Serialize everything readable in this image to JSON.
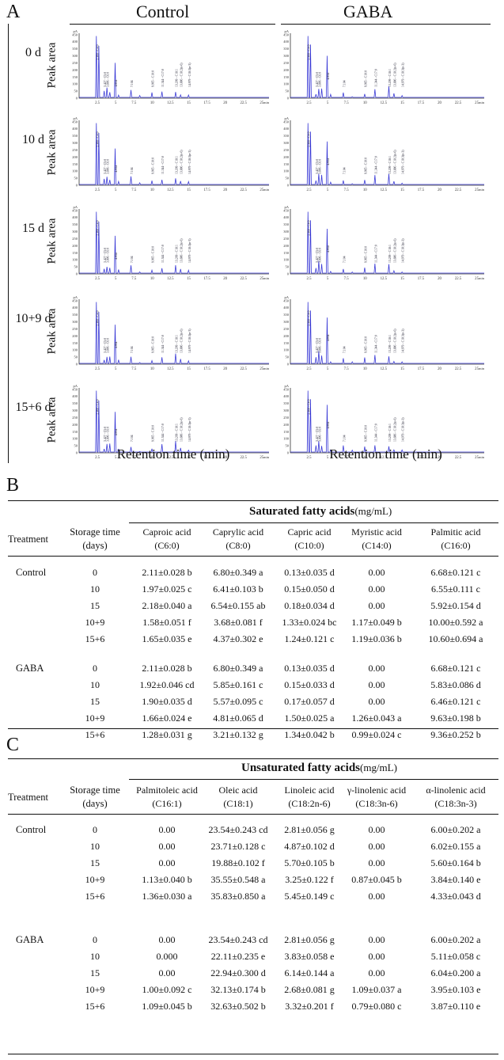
{
  "panelA": {
    "letter": "A",
    "col_headers": [
      "Control",
      "GABA"
    ],
    "row_labels": [
      "0 d",
      "10 d",
      "15 d",
      "10+9 d",
      "15+6 d"
    ],
    "y_axis_label": "Peak area",
    "x_axis_label": "Retention time (min)",
    "y_ticks": [
      "450",
      "400",
      "350",
      "300",
      "250",
      "200",
      "150",
      "100",
      "50",
      "0"
    ],
    "y_unit": "pA",
    "x_ticks": [
      "2.5",
      "5",
      "7.5",
      "10",
      "12.5",
      "15",
      "17.5",
      "20",
      "22.5",
      "25"
    ],
    "x_unit": "min",
    "peak_labels": [
      "2.360 - C4:0",
      "3.427 - C5:0",
      "3.806 - C6:0",
      "4.934",
      "7.104",
      "9.965 - C10:0",
      "11.344 - C17:0",
      "13.209 - C18:1",
      "13.886 - C18:2(n-6)",
      "14.979 - C18:3(n-3)"
    ]
  },
  "panelB": {
    "letter": "B",
    "treatment_label": "Treatment",
    "storage_label": "Storage time",
    "storage_unit": "(days)",
    "group_title": "Saturated fatty acids",
    "group_unit": "(mg/mL)",
    "cols": [
      {
        "name": "Caproic acid",
        "code": "(C6:0)"
      },
      {
        "name": "Caprylic acid",
        "code": "(C8:0)"
      },
      {
        "name": "Capric acid",
        "code": "(C10:0)"
      },
      {
        "name": "Myristic acid",
        "code": "(C14:0)"
      },
      {
        "name": "Palmitic acid",
        "code": "(C16:0)"
      }
    ],
    "groups": [
      {
        "treatment": "Control",
        "rows": [
          {
            "day": "0",
            "v": [
              "2.11±0.028 b",
              "6.80±0.349 a",
              "0.13±0.035 d",
              "0.00",
              "6.68±0.121 c"
            ]
          },
          {
            "day": "10",
            "v": [
              "1.97±0.025 c",
              "6.41±0.103 b",
              "0.15±0.050 d",
              "0.00",
              "6.55±0.111 c"
            ]
          },
          {
            "day": "15",
            "v": [
              "2.18±0.040 a",
              "6.54±0.155 ab",
              "0.18±0.034 d",
              "0.00",
              "5.92±0.154 d"
            ]
          },
          {
            "day": "10+9",
            "v": [
              "1.58±0.051 f",
              "3.68±0.081 f",
              "1.33±0.024 bc",
              "1.17±0.049 b",
              "10.00±0.592 a"
            ]
          },
          {
            "day": "15+6",
            "v": [
              "1.65±0.035 e",
              "4.37±0.302 e",
              "1.24±0.121 c",
              "1.19±0.036 b",
              "10.60±0.694 a"
            ]
          }
        ]
      },
      {
        "treatment": "GABA",
        "rows": [
          {
            "day": "0",
            "v": [
              "2.11±0.028 b",
              "6.80±0.349 a",
              "0.13±0.035 d",
              "0.00",
              "6.68±0.121 c"
            ]
          },
          {
            "day": "10",
            "v": [
              "1.92±0.046 cd",
              "5.85±0.161 c",
              "0.15±0.033 d",
              "0.00",
              "5.83±0.086 d"
            ]
          },
          {
            "day": "15",
            "v": [
              "1.90±0.035 d",
              "5.57±0.095 c",
              "0.17±0.057 d",
              "0.00",
              "6.46±0.121 c"
            ]
          },
          {
            "day": "10+9",
            "v": [
              "1.66±0.024 e",
              "4.81±0.065 d",
              "1.50±0.025 a",
              "1.26±0.043 a",
              "9.63±0.198 b"
            ]
          },
          {
            "day": "15+6",
            "v": [
              "1.28±0.031 g",
              "3.21±0.132 g",
              "1.34±0.042 b",
              "0.99±0.024 c",
              "9.36±0.252 b"
            ]
          }
        ]
      }
    ]
  },
  "panelC": {
    "letter": "C",
    "treatment_label": "Treatment",
    "storage_label": "Storage time",
    "storage_unit": "(days)",
    "group_title": "Unsaturated fatty acids",
    "group_unit": "(mg/mL)",
    "cols": [
      {
        "name": "Palmitoleic acid",
        "code": "(C16:1)"
      },
      {
        "name": "Oleic acid",
        "code": "(C18:1)"
      },
      {
        "name": "Linoleic acid",
        "code": "(C18:2n-6)"
      },
      {
        "name": "γ-linolenic acid",
        "code": "(C18:3n-6)"
      },
      {
        "name": "α-linolenic acid",
        "code": "(C18:3n-3)"
      }
    ],
    "groups": [
      {
        "treatment": "Control",
        "rows": [
          {
            "day": "0",
            "v": [
              "0.00",
              "23.54±0.243 cd",
              "2.81±0.056 g",
              "0.00",
              "6.00±0.202 a"
            ]
          },
          {
            "day": "10",
            "v": [
              "0.00",
              "23.71±0.128 c",
              "4.87±0.102 d",
              "0.00",
              "6.02±0.155 a"
            ]
          },
          {
            "day": "15",
            "v": [
              "0.00",
              "19.88±0.102 f",
              "5.70±0.105 b",
              "0.00",
              "5.60±0.164 b"
            ]
          },
          {
            "day": "10+9",
            "v": [
              "1.13±0.040 b",
              "35.55±0.548 a",
              "3.25±0.122 f",
              "0.87±0.045 b",
              "3.84±0.140 e"
            ]
          },
          {
            "day": "15+6",
            "v": [
              "1.36±0.030 a",
              "35.83±0.850 a",
              "5.45±0.149 c",
              "0.00",
              "4.33±0.043 d"
            ]
          }
        ]
      },
      {
        "treatment": "GABA",
        "rows": [
          {
            "day": "0",
            "v": [
              "0.00",
              "23.54±0.243 cd",
              "2.81±0.056 g",
              "0.00",
              "6.00±0.202 a"
            ]
          },
          {
            "day": "10",
            "v": [
              "0.000",
              "22.11±0.235 e",
              "3.83±0.058 e",
              "0.00",
              "5.11±0.058 c"
            ]
          },
          {
            "day": "15",
            "v": [
              "0.00",
              "22.94±0.300 d",
              "6.14±0.144 a",
              "0.00",
              "6.04±0.200 a"
            ]
          },
          {
            "day": "10+9",
            "v": [
              "1.00±0.092 c",
              "32.13±0.174 b",
              "2.68±0.081 g",
              "1.09±0.037 a",
              "3.95±0.103 e"
            ]
          },
          {
            "day": "15+6",
            "v": [
              "1.09±0.045 b",
              "32.63±0.502 b",
              "3.32±0.201 f",
              "0.79±0.080 c",
              "3.87±0.110 e"
            ]
          }
        ]
      }
    ]
  }
}
